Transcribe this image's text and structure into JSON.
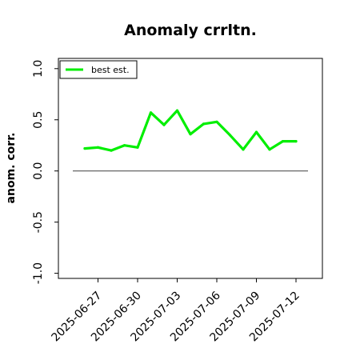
{
  "chart_data": {
    "type": "line",
    "title": "Anomaly crrltn.",
    "xlabel": "",
    "ylabel": "anom. corr.",
    "ylim": [
      -1.05,
      1.1
    ],
    "yticks": [
      "-1.0",
      "-0.5",
      "0.0",
      "0.5",
      "1.0"
    ],
    "xticks": [
      "2025-06-27",
      "2025-06-30",
      "2025-07-03",
      "2025-07-06",
      "2025-07-09",
      "2025-07-12"
    ],
    "x": [
      "2025-06-26",
      "2025-06-27",
      "2025-06-28",
      "2025-06-29",
      "2025-06-30",
      "2025-07-01",
      "2025-07-02",
      "2025-07-03",
      "2025-07-04",
      "2025-07-05",
      "2025-07-06",
      "2025-07-07",
      "2025-07-08",
      "2025-07-09",
      "2025-07-10",
      "2025-07-11",
      "2025-07-12"
    ],
    "series": [
      {
        "name": "best est.",
        "color": "#00ee00",
        "values": [
          0.22,
          0.23,
          0.2,
          0.25,
          0.23,
          0.57,
          0.45,
          0.59,
          0.36,
          0.46,
          0.48,
          0.35,
          0.21,
          0.38,
          0.21,
          0.29,
          0.29
        ]
      }
    ],
    "reference_line": {
      "y": 0.0,
      "color": "#555555"
    },
    "legend": {
      "placement": "top-left"
    },
    "grid": false
  }
}
